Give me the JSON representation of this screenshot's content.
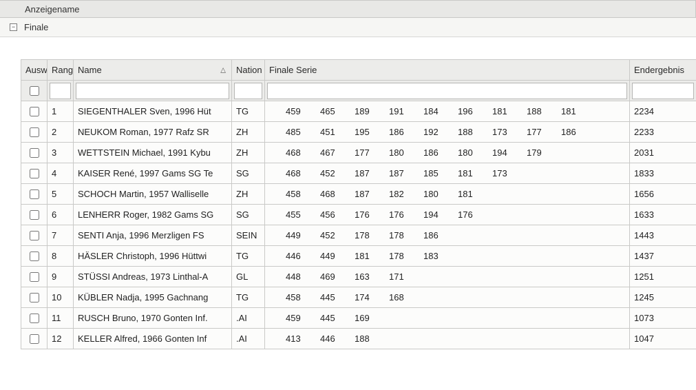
{
  "outerHeader": {
    "label": "Anzeigename"
  },
  "group": {
    "label": "Finale",
    "expanded": true
  },
  "columns": {
    "ausw": "Ausw",
    "rang": "Rang",
    "name": "Name",
    "nation": "Nation",
    "serie": "Finale Serie",
    "result": "Endergebnis"
  },
  "sort": {
    "column": "name",
    "direction": "asc",
    "indicator": "△"
  },
  "filters": {
    "ausw_checked": false,
    "rang": "",
    "name": "",
    "nation": "",
    "serie": "",
    "result": ""
  },
  "serie_slot_count": 9,
  "rows": [
    {
      "checked": false,
      "rang": "1",
      "name": "SIEGENTHALER Sven, 1996 Hüt",
      "nation": "TG",
      "serie": [
        "459",
        "465",
        "189",
        "191",
        "184",
        "196",
        "181",
        "188",
        "181"
      ],
      "result": "2234"
    },
    {
      "checked": false,
      "rang": "2",
      "name": "NEUKOM Roman, 1977 Rafz SR",
      "nation": "ZH",
      "serie": [
        "485",
        "451",
        "195",
        "186",
        "192",
        "188",
        "173",
        "177",
        "186"
      ],
      "result": "2233"
    },
    {
      "checked": false,
      "rang": "3",
      "name": "WETTSTEIN Michael, 1991 Kybu",
      "nation": "ZH",
      "serie": [
        "468",
        "467",
        "177",
        "180",
        "186",
        "180",
        "194",
        "179"
      ],
      "result": "2031"
    },
    {
      "checked": false,
      "rang": "4",
      "name": "KAISER René, 1997 Gams SG Te",
      "nation": "SG",
      "serie": [
        "468",
        "452",
        "187",
        "187",
        "185",
        "181",
        "173"
      ],
      "result": "1833"
    },
    {
      "checked": false,
      "rang": "5",
      "name": "SCHOCH Martin, 1957 Walliselle",
      "nation": "ZH",
      "serie": [
        "458",
        "468",
        "187",
        "182",
        "180",
        "181"
      ],
      "result": "1656"
    },
    {
      "checked": false,
      "rang": "6",
      "name": "LENHERR Roger, 1982 Gams SG",
      "nation": "SG",
      "serie": [
        "455",
        "456",
        "176",
        "176",
        "194",
        "176"
      ],
      "result": "1633"
    },
    {
      "checked": false,
      "rang": "7",
      "name": "SENTI Anja, 1996 Merzligen FS",
      "nation": "SEIN",
      "serie": [
        "449",
        "452",
        "178",
        "178",
        "186"
      ],
      "result": "1443"
    },
    {
      "checked": false,
      "rang": "8",
      "name": "HÄSLER Christoph, 1996 Hüttwi",
      "nation": "TG",
      "serie": [
        "446",
        "449",
        "181",
        "178",
        "183"
      ],
      "result": "1437"
    },
    {
      "checked": false,
      "rang": "9",
      "name": "STÜSSI Andreas, 1973 Linthal-A",
      "nation": "GL",
      "serie": [
        "448",
        "469",
        "163",
        "171"
      ],
      "result": "1251"
    },
    {
      "checked": false,
      "rang": "10",
      "name": "KÜBLER Nadja, 1995 Gachnang",
      "nation": "TG",
      "serie": [
        "458",
        "445",
        "174",
        "168"
      ],
      "result": "1245"
    },
    {
      "checked": false,
      "rang": "11",
      "name": "RUSCH Bruno, 1970 Gonten Inf.",
      "nation": ".AI",
      "serie": [
        "459",
        "445",
        "169"
      ],
      "result": "1073"
    },
    {
      "checked": false,
      "rang": "12",
      "name": "KELLER Alfred, 1966 Gonten Inf",
      "nation": ".AI",
      "serie": [
        "413",
        "446",
        "188"
      ],
      "result": "1047"
    }
  ]
}
